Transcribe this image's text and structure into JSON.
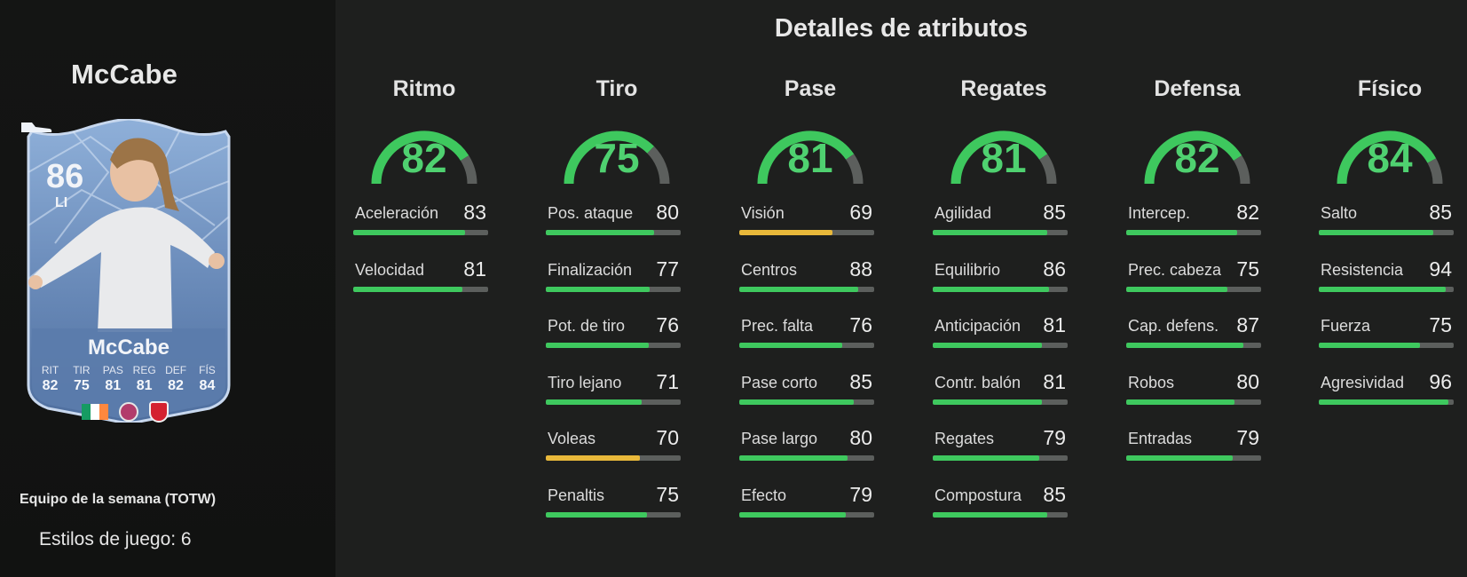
{
  "player": {
    "name": "McCabe",
    "card": {
      "rating": "86",
      "position": "LI",
      "name": "McCabe",
      "stats": [
        {
          "label": "RIT",
          "value": "82"
        },
        {
          "label": "TIR",
          "value": "75"
        },
        {
          "label": "PAS",
          "value": "81"
        },
        {
          "label": "REG",
          "value": "81"
        },
        {
          "label": "DEF",
          "value": "82"
        },
        {
          "label": "FÍS",
          "value": "84"
        }
      ],
      "nation_flag_colors": [
        "#169b62",
        "#ffffff",
        "#ff883e"
      ]
    },
    "card_type": "Equipo de la semana (TOTW)",
    "play_styles": "Estilos de juego: 6"
  },
  "section_title": "Detalles de atributos",
  "colors": {
    "high": "#3ec85e",
    "medium": "#e8b83a",
    "track": "#5c5f5d"
  },
  "categories": [
    {
      "title": "Ritmo",
      "value": "82",
      "attrs": [
        {
          "label": "Aceleración",
          "value": "83"
        },
        {
          "label": "Velocidad",
          "value": "81"
        }
      ]
    },
    {
      "title": "Tiro",
      "value": "75",
      "attrs": [
        {
          "label": "Pos. ataque",
          "value": "80"
        },
        {
          "label": "Finalización",
          "value": "77"
        },
        {
          "label": "Pot. de tiro",
          "value": "76"
        },
        {
          "label": "Tiro lejano",
          "value": "71"
        },
        {
          "label": "Voleas",
          "value": "70"
        },
        {
          "label": "Penaltis",
          "value": "75"
        }
      ]
    },
    {
      "title": "Pase",
      "value": "81",
      "attrs": [
        {
          "label": "Visión",
          "value": "69"
        },
        {
          "label": "Centros",
          "value": "88"
        },
        {
          "label": "Prec. falta",
          "value": "76"
        },
        {
          "label": "Pase corto",
          "value": "85"
        },
        {
          "label": "Pase largo",
          "value": "80"
        },
        {
          "label": "Efecto",
          "value": "79"
        }
      ]
    },
    {
      "title": "Regates",
      "value": "81",
      "attrs": [
        {
          "label": "Agilidad",
          "value": "85"
        },
        {
          "label": "Equilibrio",
          "value": "86"
        },
        {
          "label": "Anticipación",
          "value": "81"
        },
        {
          "label": "Contr. balón",
          "value": "81"
        },
        {
          "label": "Regates",
          "value": "79"
        },
        {
          "label": "Compostura",
          "value": "85"
        }
      ]
    },
    {
      "title": "Defensa",
      "value": "82",
      "attrs": [
        {
          "label": "Intercep.",
          "value": "82"
        },
        {
          "label": "Prec. cabeza",
          "value": "75"
        },
        {
          "label": "Cap. defens.",
          "value": "87"
        },
        {
          "label": "Robos",
          "value": "80"
        },
        {
          "label": "Entradas",
          "value": "79"
        }
      ]
    },
    {
      "title": "Físico",
      "value": "84",
      "attrs": [
        {
          "label": "Salto",
          "value": "85"
        },
        {
          "label": "Resistencia",
          "value": "94"
        },
        {
          "label": "Fuerza",
          "value": "75"
        },
        {
          "label": "Agresividad",
          "value": "96"
        }
      ]
    }
  ]
}
